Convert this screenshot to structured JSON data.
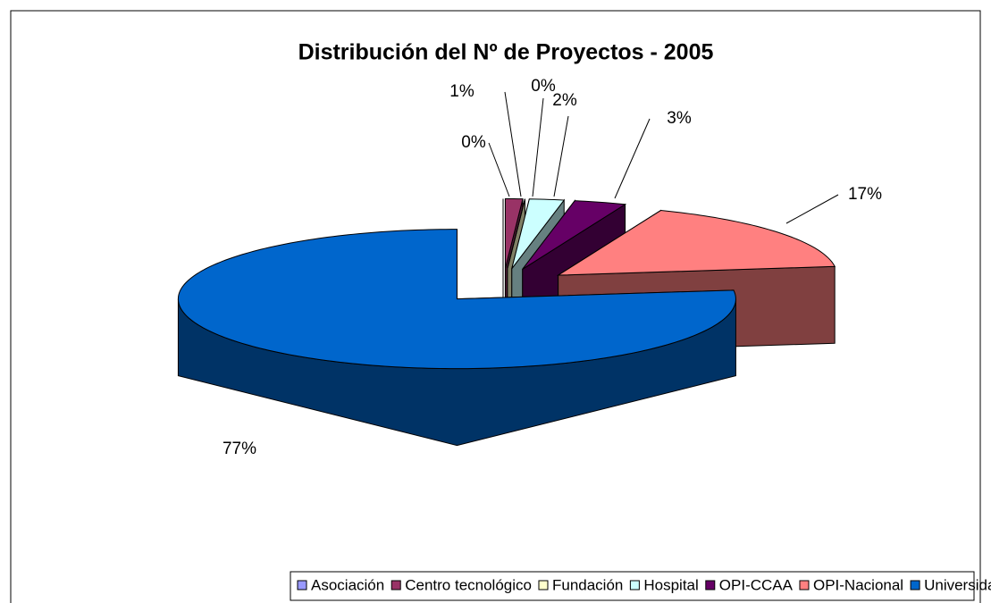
{
  "chart_data": {
    "type": "pie3d",
    "title": "Distribución del Nº de Proyectos - 2005",
    "categories": [
      "Asociación",
      "Centro tecnológico",
      "Fundación",
      "Hospital",
      "OPI-CCAA",
      "OPI-Nacional",
      "Universidad"
    ],
    "values": [
      0,
      1,
      0,
      2,
      3,
      17,
      77
    ],
    "value_labels": [
      "0%",
      "1%",
      "0%",
      "2%",
      "3%",
      "17%",
      "77%"
    ],
    "colors": [
      "#9999ff",
      "#993366",
      "#ffffcc",
      "#ccffff",
      "#660066",
      "#ff8080",
      "#0066cc"
    ],
    "legend": "bottom"
  }
}
